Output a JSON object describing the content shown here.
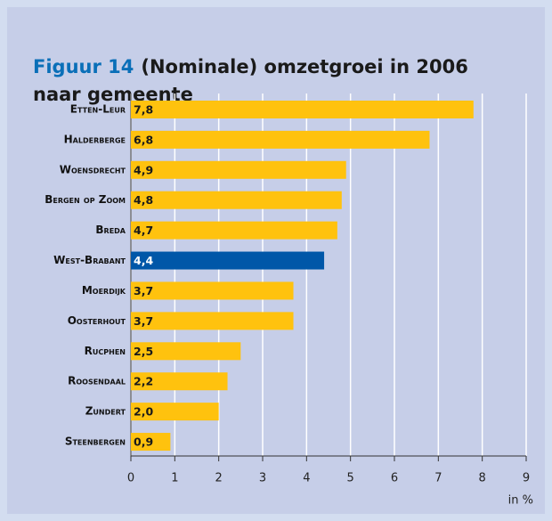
{
  "chart_data": {
    "type": "bar",
    "orientation": "horizontal",
    "figure_label": "Figuur 14",
    "title": "(Nominale) omzetgroei in 2006 naar gemeente",
    "categories": [
      "Etten-Leur",
      "Halderberge",
      "Woensdrecht",
      "Bergen op Zoom",
      "Breda",
      "West-Brabant",
      "Moerdijk",
      "Oosterhout",
      "Rucphen",
      "Roosendaal",
      "Zundert",
      "Steenbergen"
    ],
    "values": [
      7.8,
      6.8,
      4.9,
      4.8,
      4.7,
      4.4,
      3.7,
      3.7,
      2.5,
      2.2,
      2.0,
      0.9
    ],
    "value_labels": [
      "7,8",
      "6,8",
      "4,9",
      "4,8",
      "4,7",
      "4,4",
      "3,7",
      "3,7",
      "2,5",
      "2,2",
      "2,0",
      "0,9"
    ],
    "colors": [
      "#ffc20e",
      "#ffc20e",
      "#ffc20e",
      "#ffc20e",
      "#ffc20e",
      "#0057a8",
      "#ffc20e",
      "#ffc20e",
      "#ffc20e",
      "#ffc20e",
      "#ffc20e",
      "#ffc20e"
    ],
    "xlim": [
      0,
      9
    ],
    "xticks": [
      0,
      1,
      2,
      3,
      4,
      5,
      6,
      7,
      8,
      9
    ],
    "xlabel": "in %",
    "grid": true
  }
}
